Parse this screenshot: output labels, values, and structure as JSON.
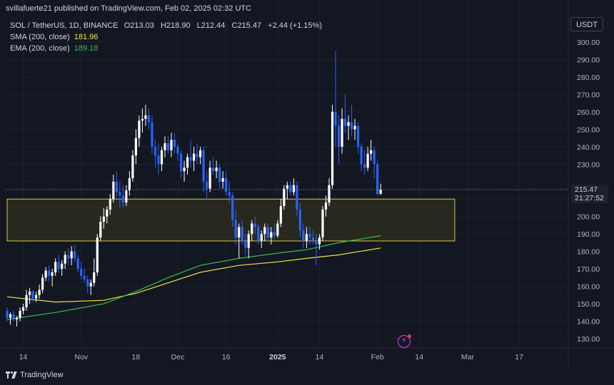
{
  "header": {
    "published": "svillafuerte21 published on TradingView.com, Feb 02, 2025 02:32 UTC"
  },
  "legend": {
    "symbol": "SOL / TetherUS, 1D, BINANCE",
    "o_label": "O",
    "o_value": "213.03",
    "h_label": "H",
    "h_value": "218.90",
    "l_label": "L",
    "l_value": "212.44",
    "c_label": "C",
    "c_value": "215.47",
    "change": "+2.44 (+1.15%)",
    "sma_label": "SMA (200, close)",
    "sma_value": "181.96",
    "ema_label": "EMA (200, close)",
    "ema_value": "189.18"
  },
  "currency_button": "USDT",
  "price_label": {
    "price": "215.47",
    "countdown": "21:27:52"
  },
  "footer": {
    "brand": "TradingView"
  },
  "colors": {
    "background": "#131722",
    "grid": "#1e222d",
    "bull": "#ffffff",
    "bear": "#2962ff",
    "sma": "#f0e34a",
    "ema": "#3dbb4b",
    "zone_fill": "#2c2b1d",
    "zone_border": "#d9c84e",
    "axis_text": "#b2b5be"
  },
  "icons": {
    "flash": "flash-icon",
    "brand": "tradingview-logo-icon"
  },
  "chart_data": {
    "type": "candlestick",
    "symbol": "SOL / TetherUS",
    "interval": "1D",
    "exchange": "BINANCE",
    "ylim": [
      125,
      305
    ],
    "y_ticks": [
      "130.00",
      "140.00",
      "150.00",
      "160.00",
      "170.00",
      "180.00",
      "190.00",
      "200.00",
      "210.00",
      "220.00",
      "230.00",
      "240.00",
      "250.00",
      "260.00",
      "270.00",
      "280.00",
      "290.00",
      "300.00"
    ],
    "x_ticks": [
      {
        "label": "14",
        "date": "2024-10-14",
        "bold": false
      },
      {
        "label": "Nov",
        "date": "2024-11-01",
        "bold": false
      },
      {
        "label": "18",
        "date": "2024-11-18",
        "bold": false
      },
      {
        "label": "Dec",
        "date": "2024-12-01",
        "bold": false
      },
      {
        "label": "16",
        "date": "2024-12-16",
        "bold": false
      },
      {
        "label": "2025",
        "date": "2025-01-01",
        "bold": true
      },
      {
        "label": "14",
        "date": "2025-01-14",
        "bold": false
      },
      {
        "label": "Feb",
        "date": "2025-02-01",
        "bold": false
      },
      {
        "label": "14",
        "date": "2025-02-14",
        "bold": false
      },
      {
        "label": "Mar",
        "date": "2025-03-01",
        "bold": false
      },
      {
        "label": "17",
        "date": "2025-03-17",
        "bold": false
      }
    ],
    "x_range": [
      "2024-10-09",
      "2025-03-27"
    ],
    "last_price": 215.47,
    "zone": {
      "from": "2024-10-09",
      "to": "2025-02-25",
      "low": 186,
      "high": 210
    },
    "candles": [
      {
        "t": "2024-10-09",
        "o": 146,
        "h": 148,
        "l": 140,
        "c": 142
      },
      {
        "t": "2024-10-10",
        "o": 142,
        "h": 145,
        "l": 138,
        "c": 144
      },
      {
        "t": "2024-10-11",
        "o": 144,
        "h": 146,
        "l": 140,
        "c": 141
      },
      {
        "t": "2024-10-12",
        "o": 141,
        "h": 143,
        "l": 137,
        "c": 142
      },
      {
        "t": "2024-10-13",
        "o": 142,
        "h": 148,
        "l": 140,
        "c": 146
      },
      {
        "t": "2024-10-14",
        "o": 146,
        "h": 150,
        "l": 144,
        "c": 148
      },
      {
        "t": "2024-10-15",
        "o": 148,
        "h": 158,
        "l": 146,
        "c": 155
      },
      {
        "t": "2024-10-16",
        "o": 155,
        "h": 159,
        "l": 150,
        "c": 157
      },
      {
        "t": "2024-10-17",
        "o": 157,
        "h": 158,
        "l": 151,
        "c": 153
      },
      {
        "t": "2024-10-18",
        "o": 153,
        "h": 157,
        "l": 151,
        "c": 155
      },
      {
        "t": "2024-10-19",
        "o": 155,
        "h": 161,
        "l": 153,
        "c": 158
      },
      {
        "t": "2024-10-20",
        "o": 158,
        "h": 167,
        "l": 156,
        "c": 165
      },
      {
        "t": "2024-10-21",
        "o": 165,
        "h": 171,
        "l": 163,
        "c": 169
      },
      {
        "t": "2024-10-22",
        "o": 169,
        "h": 172,
        "l": 163,
        "c": 166
      },
      {
        "t": "2024-10-23",
        "o": 166,
        "h": 170,
        "l": 160,
        "c": 168
      },
      {
        "t": "2024-10-24",
        "o": 168,
        "h": 176,
        "l": 166,
        "c": 174
      },
      {
        "t": "2024-10-25",
        "o": 174,
        "h": 178,
        "l": 168,
        "c": 170
      },
      {
        "t": "2024-10-26",
        "o": 170,
        "h": 175,
        "l": 166,
        "c": 173
      },
      {
        "t": "2024-10-27",
        "o": 173,
        "h": 180,
        "l": 170,
        "c": 178
      },
      {
        "t": "2024-10-28",
        "o": 178,
        "h": 182,
        "l": 172,
        "c": 176
      },
      {
        "t": "2024-10-29",
        "o": 176,
        "h": 183,
        "l": 172,
        "c": 180
      },
      {
        "t": "2024-10-30",
        "o": 180,
        "h": 184,
        "l": 174,
        "c": 176
      },
      {
        "t": "2024-10-31",
        "o": 176,
        "h": 178,
        "l": 168,
        "c": 170
      },
      {
        "t": "2024-11-01",
        "o": 170,
        "h": 174,
        "l": 164,
        "c": 166
      },
      {
        "t": "2024-11-02",
        "o": 166,
        "h": 170,
        "l": 162,
        "c": 164
      },
      {
        "t": "2024-11-03",
        "o": 164,
        "h": 166,
        "l": 156,
        "c": 160
      },
      {
        "t": "2024-11-04",
        "o": 160,
        "h": 164,
        "l": 155,
        "c": 162
      },
      {
        "t": "2024-11-05",
        "o": 162,
        "h": 176,
        "l": 160,
        "c": 168
      },
      {
        "t": "2024-11-06",
        "o": 168,
        "h": 190,
        "l": 166,
        "c": 188
      },
      {
        "t": "2024-11-07",
        "o": 188,
        "h": 200,
        "l": 186,
        "c": 197
      },
      {
        "t": "2024-11-08",
        "o": 197,
        "h": 205,
        "l": 193,
        "c": 200
      },
      {
        "t": "2024-11-09",
        "o": 200,
        "h": 206,
        "l": 196,
        "c": 204
      },
      {
        "t": "2024-11-10",
        "o": 204,
        "h": 213,
        "l": 201,
        "c": 210
      },
      {
        "t": "2024-11-11",
        "o": 210,
        "h": 224,
        "l": 208,
        "c": 220
      },
      {
        "t": "2024-11-12",
        "o": 220,
        "h": 226,
        "l": 210,
        "c": 214
      },
      {
        "t": "2024-11-13",
        "o": 214,
        "h": 220,
        "l": 205,
        "c": 212
      },
      {
        "t": "2024-11-14",
        "o": 212,
        "h": 218,
        "l": 205,
        "c": 208
      },
      {
        "t": "2024-11-15",
        "o": 208,
        "h": 218,
        "l": 206,
        "c": 215
      },
      {
        "t": "2024-11-16",
        "o": 215,
        "h": 226,
        "l": 212,
        "c": 222
      },
      {
        "t": "2024-11-17",
        "o": 222,
        "h": 238,
        "l": 220,
        "c": 235
      },
      {
        "t": "2024-11-18",
        "o": 235,
        "h": 250,
        "l": 230,
        "c": 245
      },
      {
        "t": "2024-11-19",
        "o": 245,
        "h": 258,
        "l": 240,
        "c": 255
      },
      {
        "t": "2024-11-20",
        "o": 255,
        "h": 262,
        "l": 248,
        "c": 256
      },
      {
        "t": "2024-11-21",
        "o": 256,
        "h": 264,
        "l": 252,
        "c": 258
      },
      {
        "t": "2024-11-22",
        "o": 258,
        "h": 262,
        "l": 250,
        "c": 254
      },
      {
        "t": "2024-11-23",
        "o": 254,
        "h": 258,
        "l": 236,
        "c": 240
      },
      {
        "t": "2024-11-24",
        "o": 240,
        "h": 244,
        "l": 228,
        "c": 235
      },
      {
        "t": "2024-11-25",
        "o": 235,
        "h": 242,
        "l": 224,
        "c": 230
      },
      {
        "t": "2024-11-26",
        "o": 230,
        "h": 240,
        "l": 226,
        "c": 238
      },
      {
        "t": "2024-11-27",
        "o": 238,
        "h": 246,
        "l": 234,
        "c": 242
      },
      {
        "t": "2024-11-28",
        "o": 242,
        "h": 246,
        "l": 236,
        "c": 238
      },
      {
        "t": "2024-11-29",
        "o": 238,
        "h": 248,
        "l": 234,
        "c": 244
      },
      {
        "t": "2024-11-30",
        "o": 244,
        "h": 248,
        "l": 236,
        "c": 240
      },
      {
        "t": "2024-12-01",
        "o": 240,
        "h": 242,
        "l": 232,
        "c": 236
      },
      {
        "t": "2024-12-02",
        "o": 236,
        "h": 238,
        "l": 222,
        "c": 226
      },
      {
        "t": "2024-12-03",
        "o": 226,
        "h": 232,
        "l": 220,
        "c": 228
      },
      {
        "t": "2024-12-04",
        "o": 228,
        "h": 236,
        "l": 224,
        "c": 234
      },
      {
        "t": "2024-12-05",
        "o": 234,
        "h": 244,
        "l": 228,
        "c": 232
      },
      {
        "t": "2024-12-06",
        "o": 232,
        "h": 240,
        "l": 226,
        "c": 236
      },
      {
        "t": "2024-12-07",
        "o": 236,
        "h": 242,
        "l": 230,
        "c": 234
      },
      {
        "t": "2024-12-08",
        "o": 234,
        "h": 240,
        "l": 230,
        "c": 238
      },
      {
        "t": "2024-12-09",
        "o": 238,
        "h": 240,
        "l": 214,
        "c": 220
      },
      {
        "t": "2024-12-10",
        "o": 220,
        "h": 226,
        "l": 210,
        "c": 216
      },
      {
        "t": "2024-12-11",
        "o": 216,
        "h": 232,
        "l": 214,
        "c": 228
      },
      {
        "t": "2024-12-12",
        "o": 228,
        "h": 234,
        "l": 224,
        "c": 226
      },
      {
        "t": "2024-12-13",
        "o": 226,
        "h": 232,
        "l": 222,
        "c": 228
      },
      {
        "t": "2024-12-14",
        "o": 228,
        "h": 230,
        "l": 216,
        "c": 220
      },
      {
        "t": "2024-12-15",
        "o": 220,
        "h": 226,
        "l": 216,
        "c": 222
      },
      {
        "t": "2024-12-16",
        "o": 222,
        "h": 226,
        "l": 212,
        "c": 214
      },
      {
        "t": "2024-12-17",
        "o": 214,
        "h": 220,
        "l": 208,
        "c": 212
      },
      {
        "t": "2024-12-18",
        "o": 212,
        "h": 214,
        "l": 194,
        "c": 198
      },
      {
        "t": "2024-12-19",
        "o": 198,
        "h": 204,
        "l": 184,
        "c": 188
      },
      {
        "t": "2024-12-20",
        "o": 188,
        "h": 196,
        "l": 176,
        "c": 194
      },
      {
        "t": "2024-12-21",
        "o": 194,
        "h": 198,
        "l": 184,
        "c": 186
      },
      {
        "t": "2024-12-22",
        "o": 186,
        "h": 190,
        "l": 178,
        "c": 182
      },
      {
        "t": "2024-12-23",
        "o": 182,
        "h": 192,
        "l": 176,
        "c": 190
      },
      {
        "t": "2024-12-24",
        "o": 190,
        "h": 198,
        "l": 186,
        "c": 196
      },
      {
        "t": "2024-12-25",
        "o": 196,
        "h": 200,
        "l": 190,
        "c": 194
      },
      {
        "t": "2024-12-26",
        "o": 194,
        "h": 196,
        "l": 184,
        "c": 186
      },
      {
        "t": "2024-12-27",
        "o": 186,
        "h": 192,
        "l": 182,
        "c": 190
      },
      {
        "t": "2024-12-28",
        "o": 190,
        "h": 196,
        "l": 186,
        "c": 194
      },
      {
        "t": "2024-12-29",
        "o": 194,
        "h": 196,
        "l": 186,
        "c": 188
      },
      {
        "t": "2024-12-30",
        "o": 188,
        "h": 194,
        "l": 184,
        "c": 191
      },
      {
        "t": "2024-12-31",
        "o": 191,
        "h": 196,
        "l": 187,
        "c": 189
      },
      {
        "t": "2025-01-01",
        "o": 189,
        "h": 198,
        "l": 188,
        "c": 196
      },
      {
        "t": "2025-01-02",
        "o": 196,
        "h": 210,
        "l": 194,
        "c": 206
      },
      {
        "t": "2025-01-03",
        "o": 206,
        "h": 218,
        "l": 204,
        "c": 216
      },
      {
        "t": "2025-01-04",
        "o": 216,
        "h": 220,
        "l": 210,
        "c": 218
      },
      {
        "t": "2025-01-05",
        "o": 218,
        "h": 220,
        "l": 212,
        "c": 214
      },
      {
        "t": "2025-01-06",
        "o": 214,
        "h": 222,
        "l": 212,
        "c": 218
      },
      {
        "t": "2025-01-07",
        "o": 218,
        "h": 220,
        "l": 200,
        "c": 204
      },
      {
        "t": "2025-01-08",
        "o": 204,
        "h": 208,
        "l": 188,
        "c": 192
      },
      {
        "t": "2025-01-09",
        "o": 192,
        "h": 196,
        "l": 182,
        "c": 186
      },
      {
        "t": "2025-01-10",
        "o": 186,
        "h": 194,
        "l": 182,
        "c": 190
      },
      {
        "t": "2025-01-11",
        "o": 190,
        "h": 194,
        "l": 184,
        "c": 188
      },
      {
        "t": "2025-01-12",
        "o": 188,
        "h": 192,
        "l": 184,
        "c": 186
      },
      {
        "t": "2025-01-13",
        "o": 186,
        "h": 190,
        "l": 172,
        "c": 184
      },
      {
        "t": "2025-01-14",
        "o": 184,
        "h": 190,
        "l": 181,
        "c": 188
      },
      {
        "t": "2025-01-15",
        "o": 188,
        "h": 206,
        "l": 186,
        "c": 204
      },
      {
        "t": "2025-01-16",
        "o": 204,
        "h": 212,
        "l": 200,
        "c": 208
      },
      {
        "t": "2025-01-17",
        "o": 208,
        "h": 222,
        "l": 206,
        "c": 218
      },
      {
        "t": "2025-01-18",
        "o": 218,
        "h": 264,
        "l": 216,
        "c": 260
      },
      {
        "t": "2025-01-19",
        "o": 260,
        "h": 295,
        "l": 240,
        "c": 252
      },
      {
        "t": "2025-01-20",
        "o": 252,
        "h": 258,
        "l": 230,
        "c": 240
      },
      {
        "t": "2025-01-21",
        "o": 240,
        "h": 262,
        "l": 236,
        "c": 256
      },
      {
        "t": "2025-01-22",
        "o": 256,
        "h": 270,
        "l": 248,
        "c": 252
      },
      {
        "t": "2025-01-23",
        "o": 252,
        "h": 258,
        "l": 244,
        "c": 254
      },
      {
        "t": "2025-01-24",
        "o": 254,
        "h": 264,
        "l": 246,
        "c": 250
      },
      {
        "t": "2025-01-25",
        "o": 250,
        "h": 256,
        "l": 244,
        "c": 252
      },
      {
        "t": "2025-01-26",
        "o": 252,
        "h": 254,
        "l": 236,
        "c": 240
      },
      {
        "t": "2025-01-27",
        "o": 240,
        "h": 242,
        "l": 226,
        "c": 230
      },
      {
        "t": "2025-01-28",
        "o": 230,
        "h": 238,
        "l": 224,
        "c": 228
      },
      {
        "t": "2025-01-29",
        "o": 228,
        "h": 240,
        "l": 226,
        "c": 236
      },
      {
        "t": "2025-01-30",
        "o": 236,
        "h": 244,
        "l": 232,
        "c": 238
      },
      {
        "t": "2025-01-31",
        "o": 238,
        "h": 240,
        "l": 222,
        "c": 230
      },
      {
        "t": "2025-02-01",
        "o": 230,
        "h": 232,
        "l": 212,
        "c": 213
      },
      {
        "t": "2025-02-02",
        "o": 213.03,
        "h": 218.9,
        "l": 212.44,
        "c": 215.47
      }
    ],
    "series": [
      {
        "name": "SMA (200, close)",
        "color": "#f0e34a",
        "points": [
          [
            "2024-10-09",
            154
          ],
          [
            "2024-10-24",
            151
          ],
          [
            "2024-11-08",
            152
          ],
          [
            "2024-11-18",
            156
          ],
          [
            "2024-11-28",
            162
          ],
          [
            "2024-12-08",
            168
          ],
          [
            "2024-12-20",
            172
          ],
          [
            "2025-01-01",
            174
          ],
          [
            "2025-01-10",
            176
          ],
          [
            "2025-01-20",
            178
          ],
          [
            "2025-02-02",
            182
          ]
        ]
      },
      {
        "name": "EMA (200, close)",
        "color": "#3dbb4b",
        "points": [
          [
            "2024-10-09",
            141
          ],
          [
            "2024-10-24",
            145
          ],
          [
            "2024-11-08",
            150
          ],
          [
            "2024-11-18",
            157
          ],
          [
            "2024-11-28",
            165
          ],
          [
            "2024-12-08",
            172
          ],
          [
            "2024-12-20",
            176
          ],
          [
            "2025-01-01",
            179
          ],
          [
            "2025-01-10",
            181
          ],
          [
            "2025-01-20",
            185
          ],
          [
            "2025-02-02",
            189
          ]
        ]
      }
    ]
  }
}
